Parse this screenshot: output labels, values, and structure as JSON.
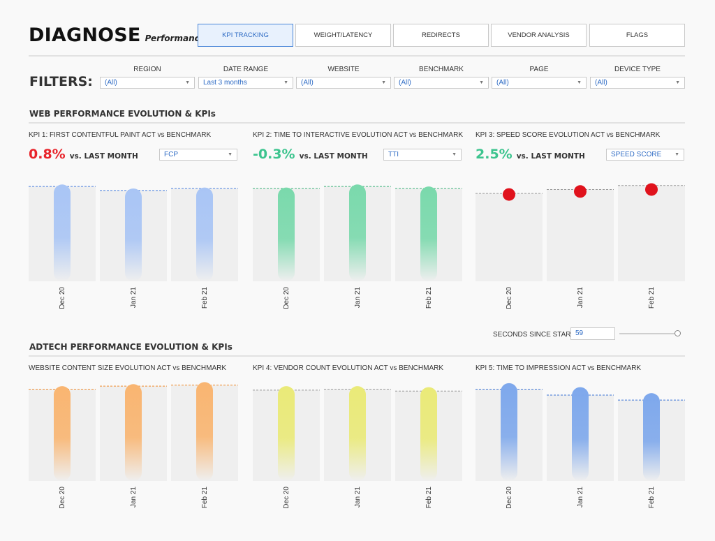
{
  "header": {
    "title": "DIAGNOSE",
    "subtitle": "Performance"
  },
  "tabs": [
    {
      "label": "KPI TRACKING",
      "active": true
    },
    {
      "label": "WEIGHT/LATENCY",
      "active": false
    },
    {
      "label": "REDIRECTS",
      "active": false
    },
    {
      "label": "VENDOR ANALYSIS",
      "active": false
    },
    {
      "label": "FLAGS",
      "active": false
    }
  ],
  "filters": {
    "label": "FILTERS:",
    "items": [
      {
        "label": "REGION",
        "value": "(All)"
      },
      {
        "label": "DATE RANGE",
        "value": "Last 3 months"
      },
      {
        "label": "WEBSITE",
        "value": "(All)"
      },
      {
        "label": "BENCHMARK",
        "value": "(All)"
      },
      {
        "label": "PAGE",
        "value": "(All)"
      },
      {
        "label": "DEVICE TYPE",
        "value": "(All)"
      }
    ]
  },
  "sections": {
    "web": "WEB PERFORMANCE EVOLUTION & KPIs",
    "adtech": "ADTECH PERFORMANCE EVOLUTION & KPIs"
  },
  "web_panels": [
    {
      "title": "KPI 1: FIRST CONTENTFUL PAINT ACT vs BENCHMARK",
      "delta": "0.8%",
      "vs": "vs. LAST MONTH",
      "delta_color": "#e8232a",
      "select": "FCP"
    },
    {
      "title": "KPI 2: TIME TO INTERACTIVE EVOLUTION ACT vs BENCHMARK",
      "delta": "-0.3%",
      "vs": "vs. LAST MONTH",
      "delta_color": "#3cc48e",
      "select": "TTI"
    },
    {
      "title": "KPI 3: SPEED SCORE EVOLUTION ACT vs BENCHMARK",
      "delta": "2.5%",
      "vs": "vs. LAST MONTH",
      "delta_color": "#3cc48e",
      "select": "SPEED SCORE"
    }
  ],
  "adtech_panels": [
    {
      "title": "WEBSITE CONTENT SIZE EVOLUTION ACT vs BENCHMARK"
    },
    {
      "title": "KPI 4: VENDOR COUNT EVOLUTION ACT vs BENCHMARK"
    },
    {
      "title": "KPI 5: TIME TO IMPRESSION ACT vs BENCHMARK"
    }
  ],
  "slider": {
    "label": "SECONDS SINCE START",
    "value": "59",
    "fraction": 0.97
  },
  "chart_data": [
    {
      "type": "bar",
      "color": "#a9c5f5",
      "line_color": "#4a80e0",
      "categories": [
        "Dec 20",
        "Jan 21",
        "Feb 21"
      ],
      "values": [
        0.97,
        0.93,
        0.94
      ],
      "benchmark": [
        0.95,
        0.91,
        0.93
      ]
    },
    {
      "type": "bar",
      "color": "#7ad9ac",
      "line_color": "#3cb37b",
      "categories": [
        "Dec 20",
        "Jan 21",
        "Feb 21"
      ],
      "values": [
        0.94,
        0.97,
        0.95
      ],
      "benchmark": [
        0.93,
        0.95,
        0.93
      ]
    },
    {
      "type": "scatter",
      "color": "#e0121c",
      "line_color": "#9a9a9a",
      "categories": [
        "Dec 20",
        "Jan 21",
        "Feb 21"
      ],
      "values": [
        0.87,
        0.9,
        0.92
      ],
      "benchmark": [
        0.88,
        0.92,
        0.96
      ]
    },
    {
      "type": "bar",
      "color": "#f9b571",
      "line_color": "#f08a2c",
      "categories": [
        "Dec 20",
        "Jan 21",
        "Feb 21"
      ],
      "values": [
        0.95,
        0.97,
        0.99
      ],
      "benchmark": [
        0.92,
        0.95,
        0.96
      ]
    },
    {
      "type": "bar",
      "color": "#eaea78",
      "line_color": "#999999",
      "categories": [
        "Dec 20",
        "Jan 21",
        "Feb 21"
      ],
      "values": [
        0.95,
        0.95,
        0.94
      ],
      "benchmark": [
        0.91,
        0.92,
        0.9
      ]
    },
    {
      "type": "bar",
      "color": "#7ea8ec",
      "line_color": "#3c74d6",
      "categories": [
        "Dec 20",
        "Jan 21",
        "Feb 21"
      ],
      "values": [
        0.98,
        0.94,
        0.88
      ],
      "benchmark": [
        0.92,
        0.86,
        0.81
      ]
    }
  ]
}
